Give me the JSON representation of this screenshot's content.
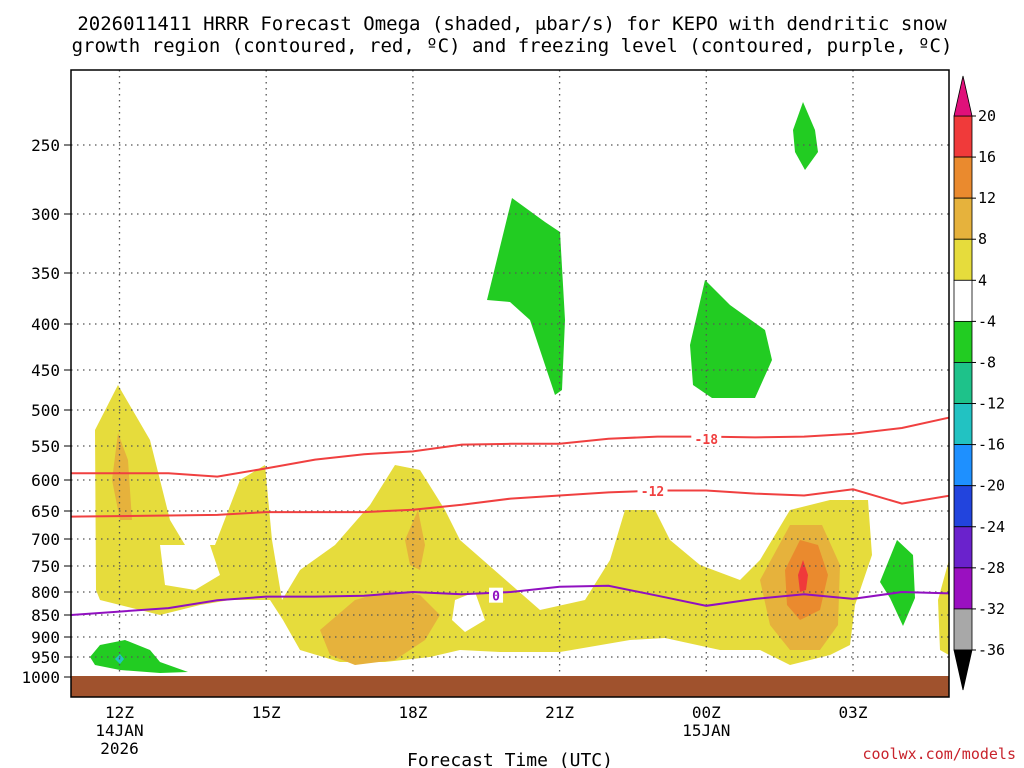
{
  "chart_data": {
    "type": "time-height contour",
    "title_lines": [
      "2026011411 HRRR Forecast Omega (shaded, μbar/s) for KEPO with dendritic snow",
      "growth region (contoured, red, ºC) and freezing level (contoured, purple, ºC)"
    ],
    "xlabel": "Forecast Time (UTC)",
    "credit": "coolwx.com/models",
    "x_ticks": [
      {
        "t": 0,
        "lines": [
          "12Z",
          "14JAN",
          "2026"
        ]
      },
      {
        "t": 3,
        "lines": [
          "15Z"
        ]
      },
      {
        "t": 6,
        "lines": [
          "18Z"
        ]
      },
      {
        "t": 9,
        "lines": [
          "21Z"
        ]
      },
      {
        "t": 12,
        "lines": [
          "00Z",
          "15JAN"
        ]
      },
      {
        "t": 15,
        "lines": [
          "03Z"
        ]
      }
    ],
    "xlim": [
      -1,
      17
    ],
    "y_levels": [
      "250",
      "300",
      "350",
      "400",
      "450",
      "500",
      "550",
      "600",
      "650",
      "700",
      "750",
      "800",
      "850",
      "900",
      "950",
      "1000"
    ],
    "colorbar": {
      "labels": [
        "20",
        "16",
        "12",
        "8",
        "4",
        "-4",
        "-8",
        "-12",
        "-16",
        "-20",
        "-24",
        "-28",
        "-32",
        "-36"
      ],
      "segments": [
        {
          "from": 16,
          "to": 20,
          "color": "#f03a3a"
        },
        {
          "from": 12,
          "to": 16,
          "color": "#ea8a2e"
        },
        {
          "from": 8,
          "to": 12,
          "color": "#e6b23c"
        },
        {
          "from": 4,
          "to": 8,
          "color": "#e6dc3c"
        },
        {
          "from": -4,
          "to": 4,
          "color": "#ffffff"
        },
        {
          "from": -8,
          "to": -4,
          "color": "#22cc22"
        },
        {
          "from": -12,
          "to": -8,
          "color": "#1ec28a"
        },
        {
          "from": -16,
          "to": -12,
          "color": "#22c2c2"
        },
        {
          "from": -20,
          "to": -16,
          "color": "#1e90ff"
        },
        {
          "from": -24,
          "to": -20,
          "color": "#2244dd"
        },
        {
          "from": -28,
          "to": -24,
          "color": "#6a22cc"
        },
        {
          "from": -32,
          "to": -28,
          "color": "#9a10c0"
        },
        {
          "from": -36,
          "to": -32,
          "color": "#a8a8a8"
        }
      ],
      "top_arrow_color": "#e0107a",
      "bottom_arrow_color": "#000000"
    },
    "contours": [
      {
        "name": "-18C isotherm",
        "label": "-18",
        "color": "#f04040",
        "points": [
          [
            -1,
            590
          ],
          [
            1,
            590
          ],
          [
            2,
            595
          ],
          [
            3,
            583
          ],
          [
            4,
            570
          ],
          [
            5,
            562
          ],
          [
            6,
            558
          ],
          [
            7,
            548
          ],
          [
            8,
            547
          ],
          [
            9,
            547
          ],
          [
            10,
            540
          ],
          [
            11,
            537
          ],
          [
            12,
            537
          ],
          [
            13,
            538
          ],
          [
            14,
            537
          ],
          [
            15,
            533
          ],
          [
            16,
            525
          ],
          [
            17,
            510
          ]
        ],
        "label_at": [
          12,
          540
        ]
      },
      {
        "name": "-12C isotherm",
        "label": "-12",
        "color": "#f04040",
        "points": [
          [
            -1,
            660
          ],
          [
            1,
            658
          ],
          [
            2,
            657
          ],
          [
            3,
            652
          ],
          [
            4,
            652
          ],
          [
            5,
            652
          ],
          [
            6,
            648
          ],
          [
            7,
            640
          ],
          [
            8,
            630
          ],
          [
            9,
            625
          ],
          [
            10,
            620
          ],
          [
            11,
            617
          ],
          [
            12,
            617
          ],
          [
            13,
            622
          ],
          [
            14,
            625
          ],
          [
            15,
            615
          ],
          [
            16,
            638
          ],
          [
            17,
            625
          ]
        ],
        "label_at": [
          10.9,
          618
        ]
      },
      {
        "name": "0C isotherm",
        "label": "0",
        "color": "#9010c0",
        "points": [
          [
            -1,
            850
          ],
          [
            1,
            835
          ],
          [
            2,
            818
          ],
          [
            3,
            810
          ],
          [
            4,
            810
          ],
          [
            5,
            808
          ],
          [
            6,
            800
          ],
          [
            7,
            805
          ],
          [
            8,
            800
          ],
          [
            9,
            790
          ],
          [
            10,
            788
          ],
          [
            11,
            808
          ],
          [
            12,
            830
          ],
          [
            13,
            815
          ],
          [
            14,
            805
          ],
          [
            15,
            815
          ],
          [
            16,
            800
          ],
          [
            17,
            803
          ]
        ],
        "label_at": [
          7.7,
          808
        ]
      }
    ]
  }
}
